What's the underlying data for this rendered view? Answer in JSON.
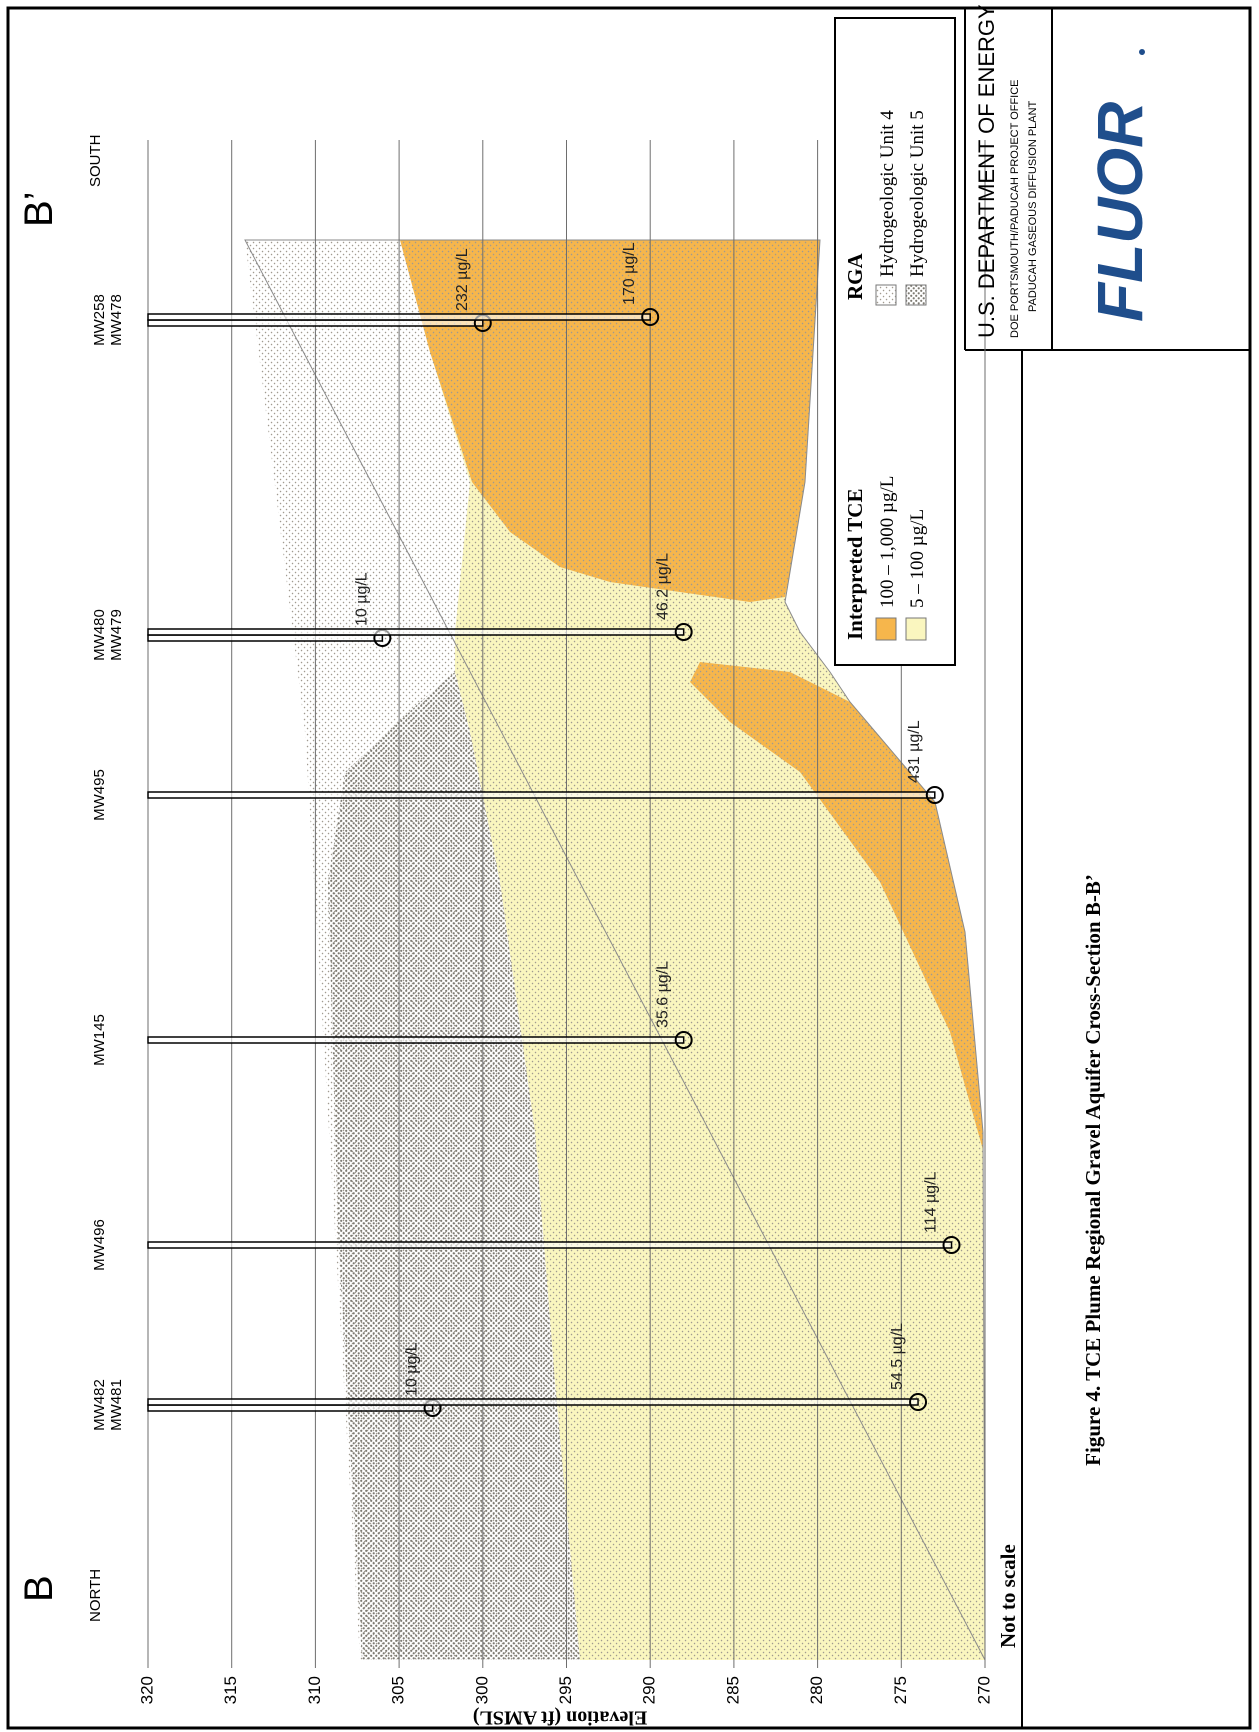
{
  "figure": {
    "title": "Figure 4. TCE Plume Regional Gravel Aquifer Cross-Section B-B’",
    "note": "Not to scale"
  },
  "axis": {
    "label": "Elevation (ft AMSL)",
    "ylim": [
      270,
      320
    ],
    "yticks": [
      320,
      315,
      310,
      305,
      300,
      295,
      290,
      285,
      280,
      275,
      270
    ]
  },
  "section": {
    "start": {
      "label": "B",
      "direction": "NORTH"
    },
    "end": {
      "label": "B’",
      "direction": "SOUTH"
    }
  },
  "wells": [
    {
      "names": [
        "MW482",
        "MW481"
      ],
      "samples": [
        {
          "elevation": 303,
          "label": "10 µg/L"
        },
        {
          "elevation": 274,
          "label": "54.5 µg/L"
        }
      ]
    },
    {
      "names": [
        "MW496"
      ],
      "samples": [
        {
          "elevation": 272,
          "label": "114 µg/L"
        }
      ]
    },
    {
      "names": [
        "MW145"
      ],
      "samples": [
        {
          "elevation": 288,
          "label": "35.6 µg/L"
        }
      ]
    },
    {
      "names": [
        "MW495"
      ],
      "samples": [
        {
          "elevation": 273,
          "label": "431 µg/L"
        }
      ]
    },
    {
      "names": [
        "MW480",
        "MW479"
      ],
      "samples": [
        {
          "elevation": 306,
          "label": "10 µg/L"
        },
        {
          "elevation": 288,
          "label": "46.2 µg/L"
        }
      ]
    },
    {
      "names": [
        "MW258",
        "MW478"
      ],
      "samples": [
        {
          "elevation": 300,
          "label": "232 µg/L"
        },
        {
          "elevation": 290,
          "label": "170 µg/L"
        }
      ]
    }
  ],
  "legend": {
    "tce": {
      "title": "Interpreted TCE",
      "items": [
        "100 – 1,000 µg/L",
        "5 – 100 µg/L"
      ]
    },
    "rga": {
      "title": "RGA",
      "items": [
        "Hydrogeologic  Unit 4",
        "Hydrogeologic  Unit 5"
      ]
    }
  },
  "title_block": {
    "agency": "U.S. DEPARTMENT OF ENERGY",
    "office": "DOE PORTSMOUTH/PADUCAH  PROJECT OFFICE",
    "plant": "PADUCAH  GASEOUS DIFFUSION PLANT",
    "logo": "FLUOR"
  }
}
